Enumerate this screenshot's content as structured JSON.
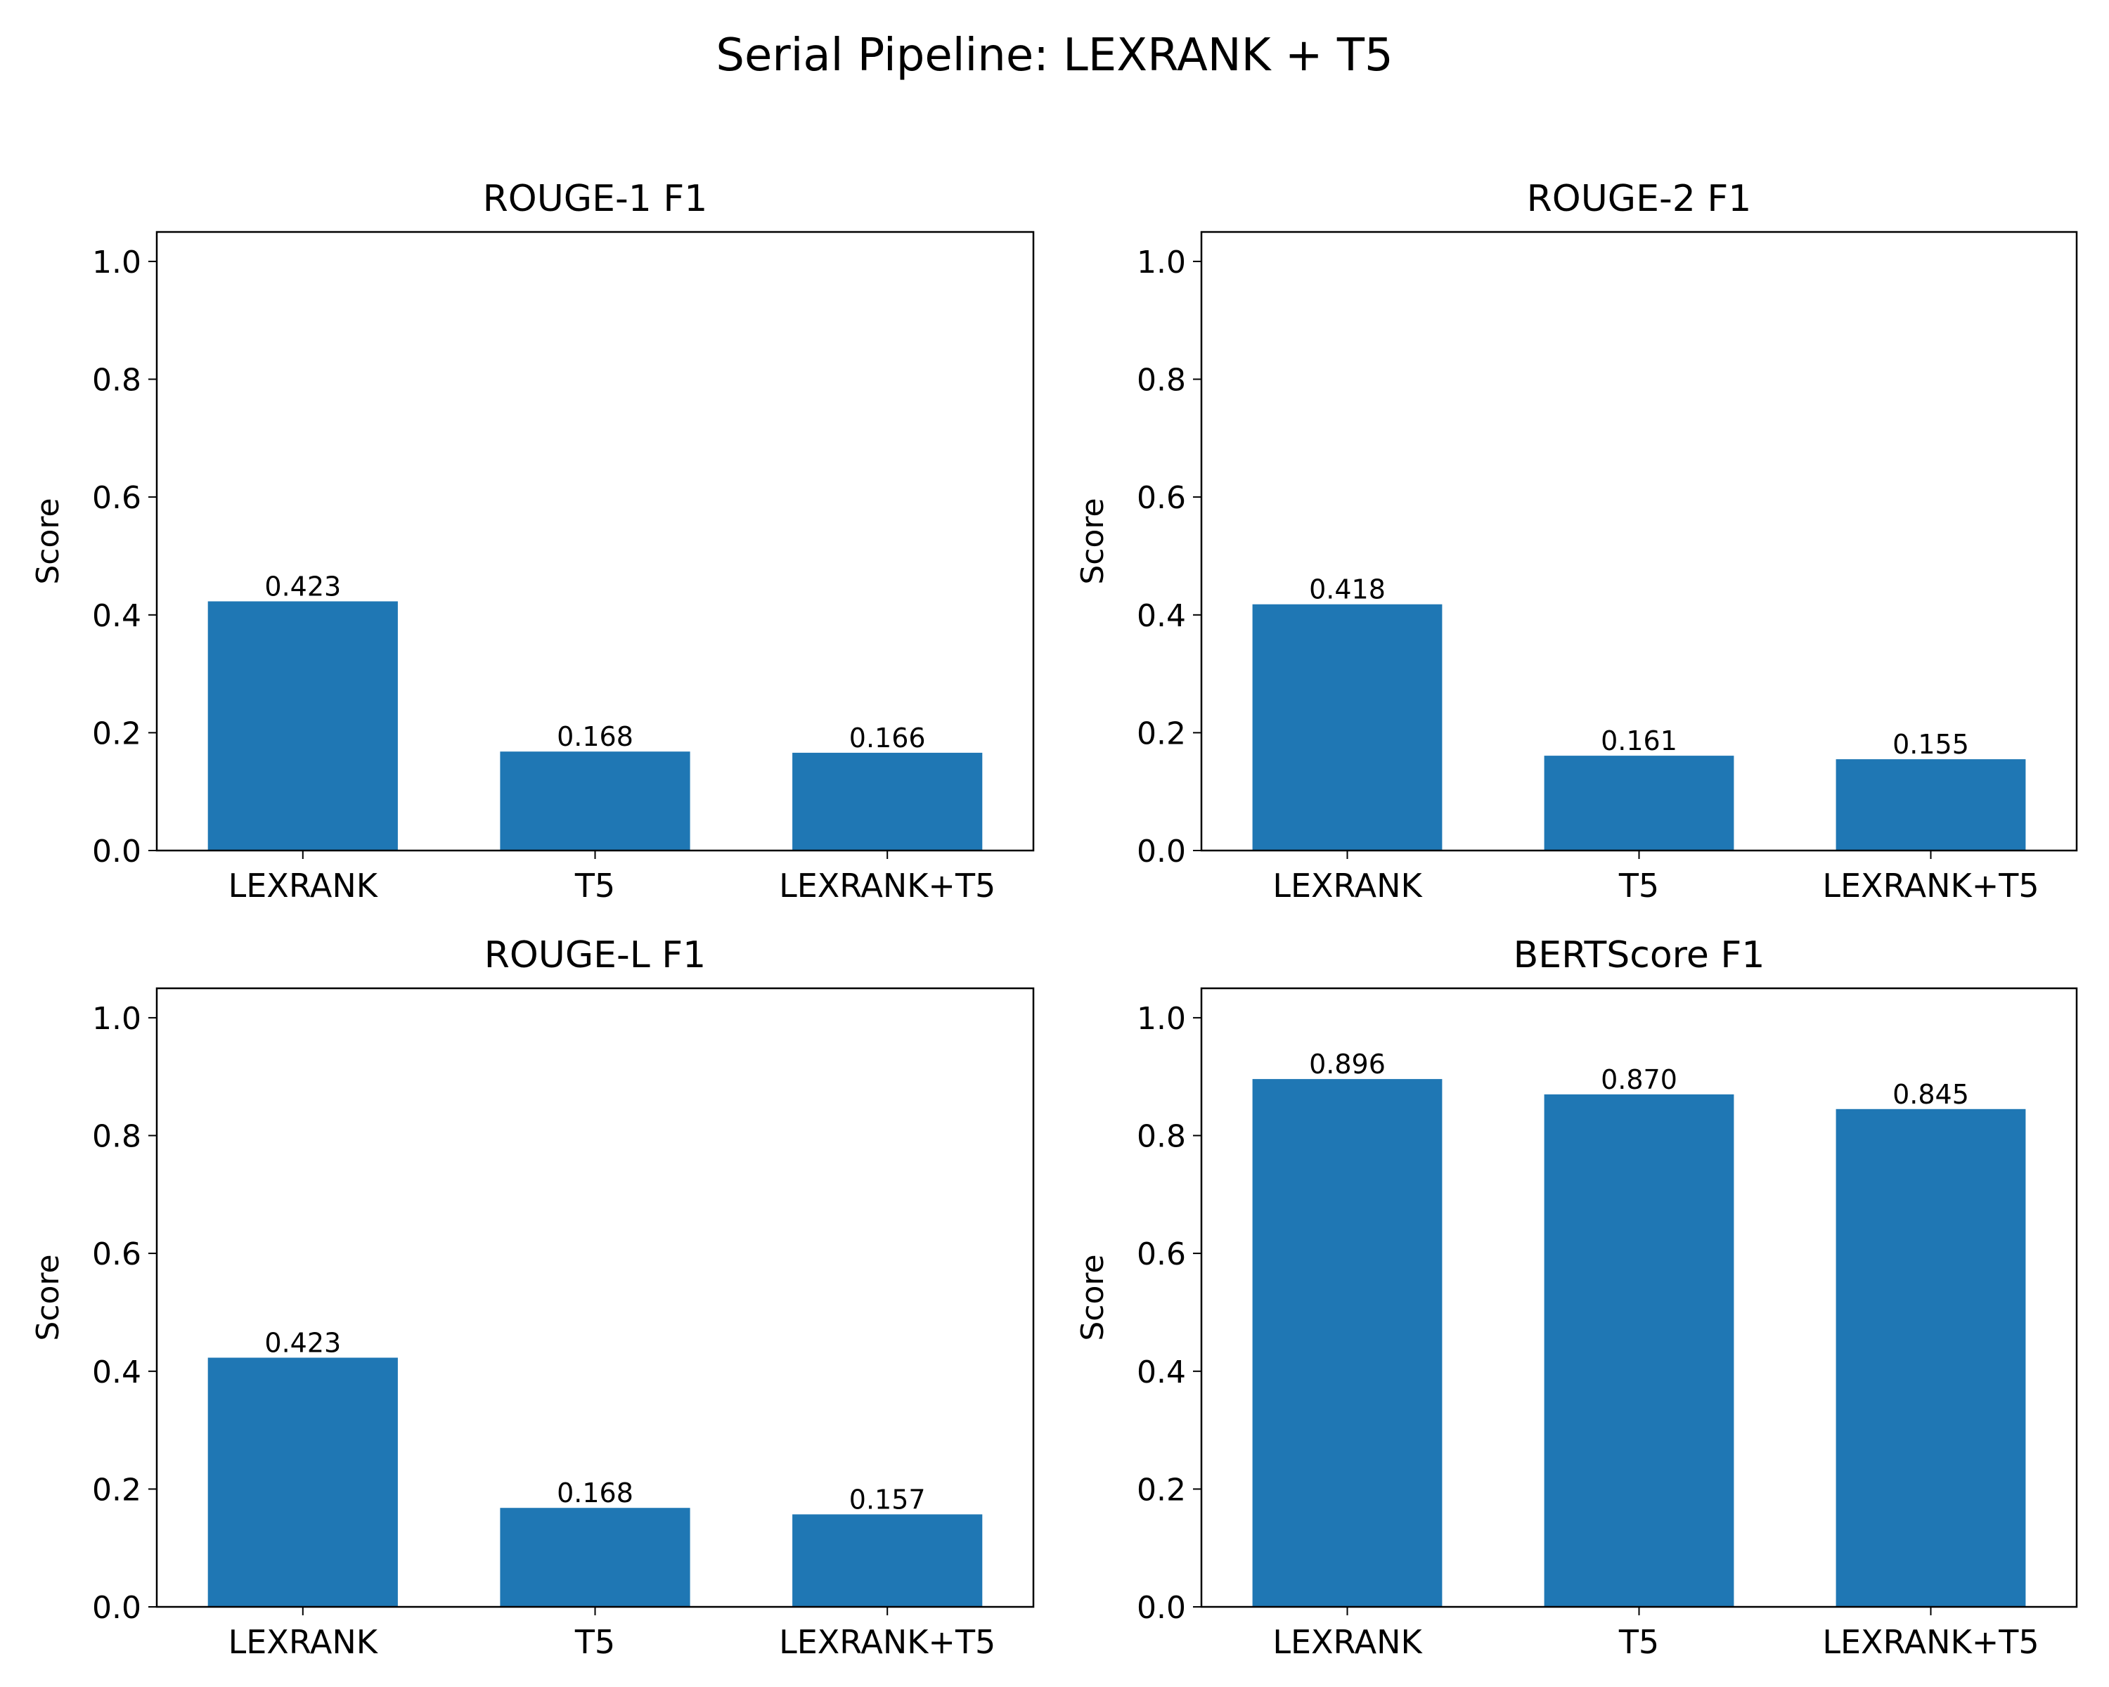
{
  "figure": {
    "title": "Serial Pipeline: LEXRANK + T5"
  },
  "chart_data": [
    {
      "type": "bar",
      "title": "ROUGE-1 F1",
      "xlabel": "",
      "ylabel": "Score",
      "categories": [
        "LEXRANK",
        "T5",
        "LEXRANK+T5"
      ],
      "values": [
        0.423,
        0.168,
        0.166
      ],
      "value_labels": [
        "0.423",
        "0.168",
        "0.166"
      ],
      "ylim": [
        0,
        1.05
      ],
      "yticks": [
        0.0,
        0.2,
        0.4,
        0.6,
        0.8,
        1.0
      ],
      "ytick_labels": [
        "0.0",
        "0.2",
        "0.4",
        "0.6",
        "0.8",
        "1.0"
      ],
      "grid": false,
      "bar_color": "#1f77b4"
    },
    {
      "type": "bar",
      "title": "ROUGE-2 F1",
      "xlabel": "",
      "ylabel": "Score",
      "categories": [
        "LEXRANK",
        "T5",
        "LEXRANK+T5"
      ],
      "values": [
        0.418,
        0.161,
        0.155
      ],
      "value_labels": [
        "0.418",
        "0.161",
        "0.155"
      ],
      "ylim": [
        0,
        1.05
      ],
      "yticks": [
        0.0,
        0.2,
        0.4,
        0.6,
        0.8,
        1.0
      ],
      "ytick_labels": [
        "0.0",
        "0.2",
        "0.4",
        "0.6",
        "0.8",
        "1.0"
      ],
      "grid": false,
      "bar_color": "#1f77b4"
    },
    {
      "type": "bar",
      "title": "ROUGE-L F1",
      "xlabel": "",
      "ylabel": "Score",
      "categories": [
        "LEXRANK",
        "T5",
        "LEXRANK+T5"
      ],
      "values": [
        0.423,
        0.168,
        0.157
      ],
      "value_labels": [
        "0.423",
        "0.168",
        "0.157"
      ],
      "ylim": [
        0,
        1.05
      ],
      "yticks": [
        0.0,
        0.2,
        0.4,
        0.6,
        0.8,
        1.0
      ],
      "ytick_labels": [
        "0.0",
        "0.2",
        "0.4",
        "0.6",
        "0.8",
        "1.0"
      ],
      "grid": false,
      "bar_color": "#1f77b4"
    },
    {
      "type": "bar",
      "title": "BERTScore F1",
      "xlabel": "",
      "ylabel": "Score",
      "categories": [
        "LEXRANK",
        "T5",
        "LEXRANK+T5"
      ],
      "values": [
        0.896,
        0.87,
        0.845
      ],
      "value_labels": [
        "0.896",
        "0.870",
        "0.845"
      ],
      "ylim": [
        0,
        1.05
      ],
      "yticks": [
        0.0,
        0.2,
        0.4,
        0.6,
        0.8,
        1.0
      ],
      "ytick_labels": [
        "0.0",
        "0.2",
        "0.4",
        "0.6",
        "0.8",
        "1.0"
      ],
      "grid": false,
      "bar_color": "#1f77b4"
    }
  ]
}
